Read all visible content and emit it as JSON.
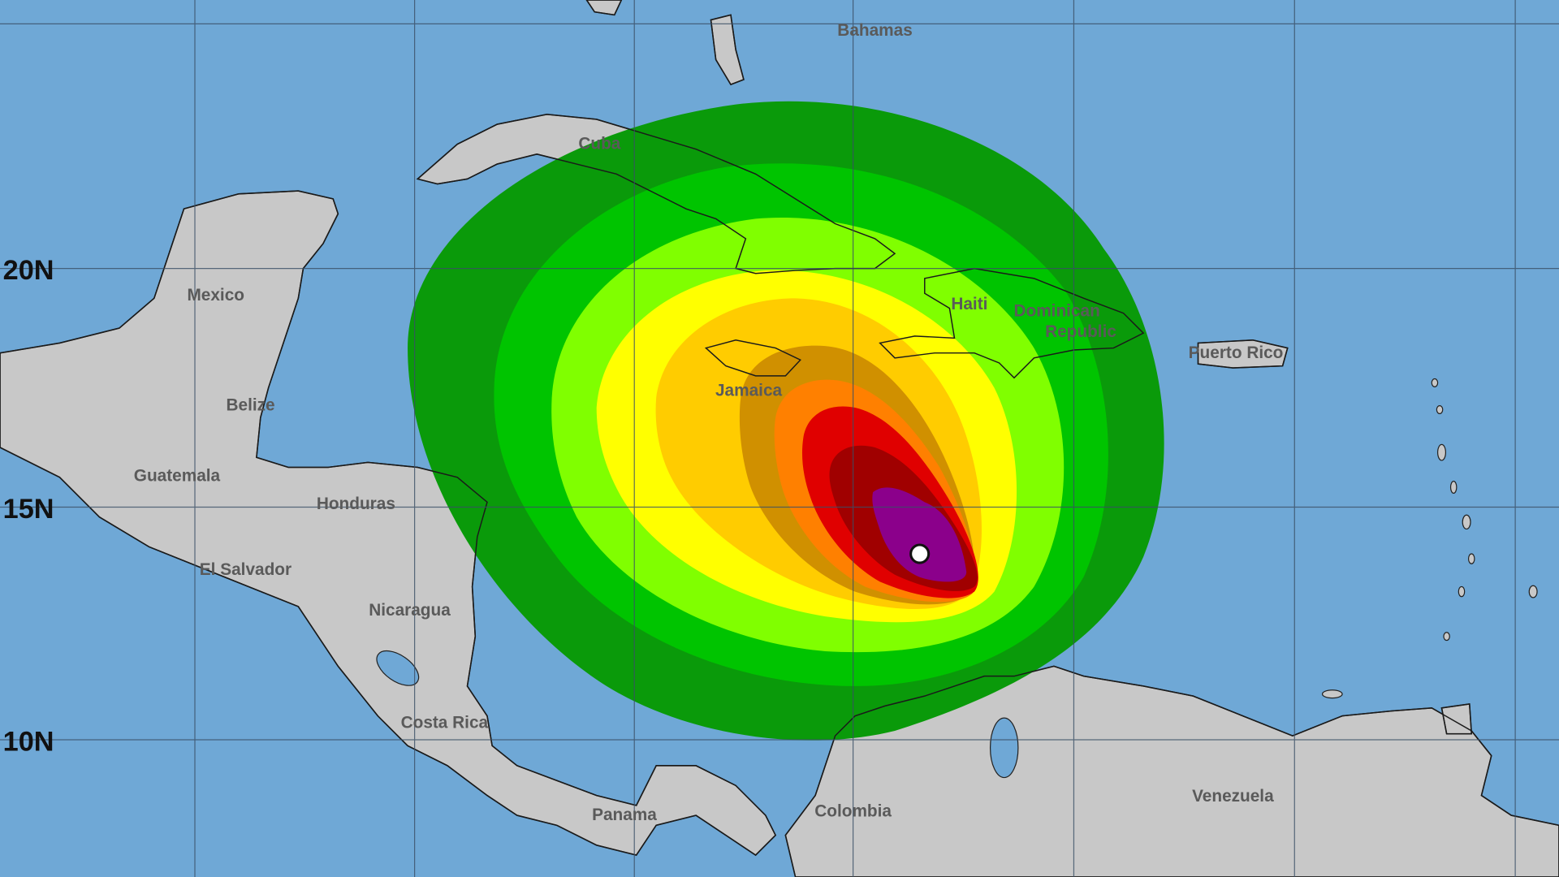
{
  "map": {
    "latitude_labels": [
      "20N",
      "15N",
      "10N"
    ],
    "countries": {
      "bahamas": "Bahamas",
      "cuba": "Cuba",
      "mexico": "Mexico",
      "belize": "Belize",
      "guatemala": "Guatemala",
      "honduras": "Honduras",
      "el_salvador": "El Salvador",
      "nicaragua": "Nicaragua",
      "costa_rica": "Costa Rica",
      "panama": "Panama",
      "colombia": "Colombia",
      "venezuela": "Venezuela",
      "jamaica": "Jamaica",
      "haiti": "Haiti",
      "dominican_republic_line1": "Dominican",
      "dominican_republic_line2": "Republic",
      "puerto_rico": "Puerto Rico"
    },
    "colors": {
      "ocean": "#6fa8d6",
      "land": "#c8c8c8",
      "swath": [
        "#0a9a0a",
        "#00c400",
        "#80ff00",
        "#ffff00",
        "#ffcc00",
        "#d09000",
        "#ff8000",
        "#e00000",
        "#a00000",
        "#8b008b"
      ],
      "storm_center": "#ffffff"
    },
    "storm_center_icon": "storm-center-marker"
  }
}
